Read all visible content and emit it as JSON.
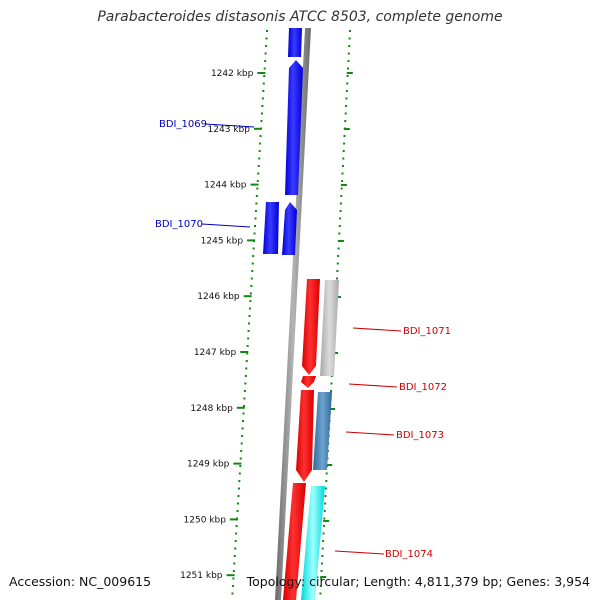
{
  "title": "Parabacteroides distasonis ATCC 8503, complete genome",
  "accession": "Accession: NC_009615",
  "stats": "Topology: circular; Length: 4,811,379 bp; Genes: 3,954",
  "colors": {
    "forward_cds": "#1010e8",
    "reverse_cds": "#ee1010",
    "gray_feature": "#b8b8b8",
    "steel_feature": "#4682b4",
    "cyan_feature": "#00f0f0",
    "tick": "#118811",
    "backbone": "#888888",
    "label_forward": "#0000bb",
    "label_reverse": "#cc0000"
  },
  "scale_ticks": [
    {
      "label": "1242 kbp"
    },
    {
      "label": "1243 kbp"
    },
    {
      "label": "1244 kbp"
    },
    {
      "label": "1245 kbp"
    },
    {
      "label": "1246 kbp"
    },
    {
      "label": "1247 kbp"
    },
    {
      "label": "1248 kbp"
    },
    {
      "label": "1249 kbp"
    },
    {
      "label": "1250 kbp"
    },
    {
      "label": "1251 kbp"
    }
  ],
  "gene_labels": [
    {
      "name": "BDI_1069",
      "strand": "forward"
    },
    {
      "name": "BDI_1070",
      "strand": "forward"
    },
    {
      "name": "BDI_1071",
      "strand": "reverse"
    },
    {
      "name": "BDI_1072",
      "strand": "reverse"
    },
    {
      "name": "BDI_1073",
      "strand": "reverse"
    },
    {
      "name": "BDI_1074",
      "strand": "reverse"
    }
  ]
}
